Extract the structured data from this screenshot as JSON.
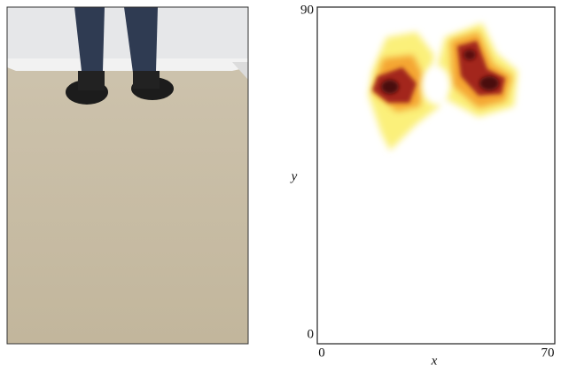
{
  "plot": {
    "xlabel": "x",
    "ylabel": "y",
    "xlim": [
      0,
      70
    ],
    "ylim": [
      0,
      90
    ],
    "xticks": [
      0,
      70
    ],
    "yticks": [
      0,
      90
    ]
  }
}
